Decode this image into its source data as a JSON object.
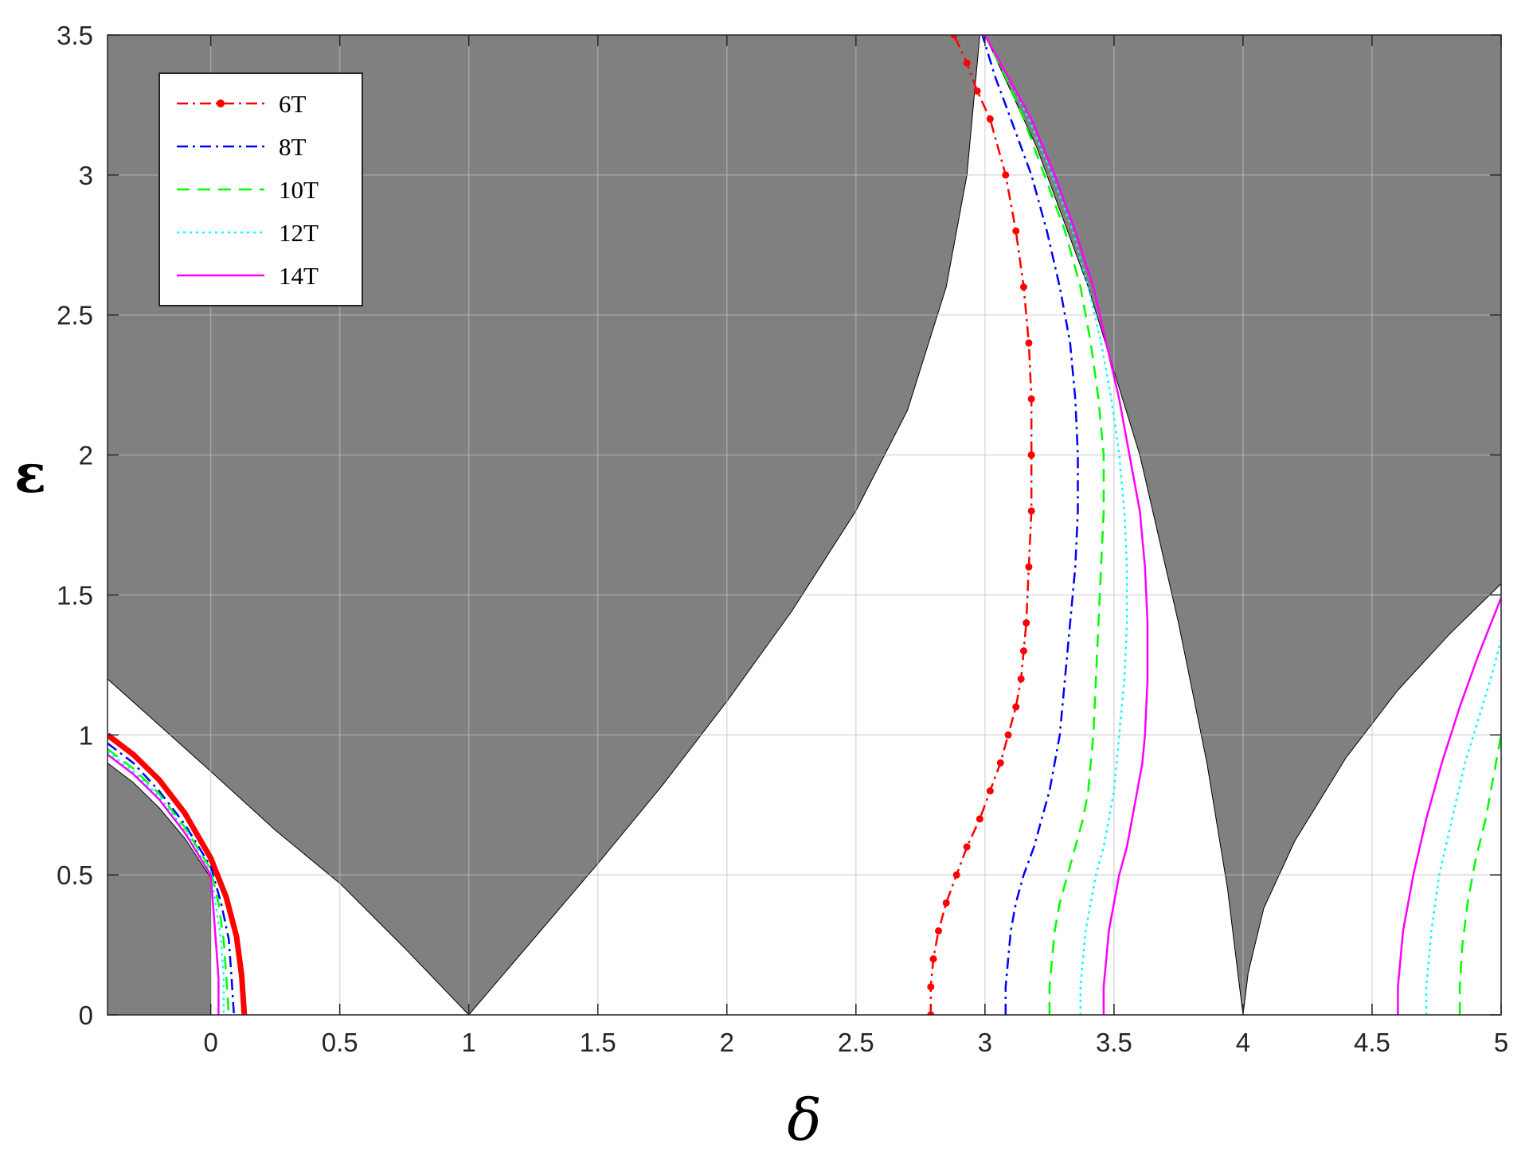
{
  "chart_data": {
    "type": "line",
    "xlabel": "δ",
    "ylabel": "ε",
    "xlim": [
      -0.4,
      5
    ],
    "ylim": [
      0,
      3.5
    ],
    "xticks": [
      "0",
      "0.5",
      "1",
      "1.5",
      "2",
      "2.5",
      "3",
      "3.5",
      "4",
      "4.5",
      "5"
    ],
    "xtick_values": [
      0,
      0.5,
      1,
      1.5,
      2,
      2.5,
      3,
      3.5,
      4,
      4.5,
      5
    ],
    "yticks": [
      "0",
      "0.5",
      "1",
      "1.5",
      "2",
      "2.5",
      "3",
      "3.5"
    ],
    "ytick_values": [
      0,
      0.5,
      1,
      1.5,
      2,
      2.5,
      3,
      3.5
    ],
    "grid": true,
    "legend_position": "top-left",
    "unstable_region_color": "#808080",
    "series": [
      {
        "name": "6T",
        "color": "#ff0000",
        "style": "dash-dot with dots",
        "branches": [
          [
            [
              -0.4,
              1.0
            ],
            [
              -0.3,
              0.93
            ],
            [
              -0.2,
              0.84
            ],
            [
              -0.1,
              0.72
            ],
            [
              0.0,
              0.56
            ],
            [
              0.06,
              0.42
            ],
            [
              0.1,
              0.28
            ],
            [
              0.12,
              0.14
            ],
            [
              0.13,
              0.0
            ]
          ],
          [
            [
              2.79,
              0.0
            ],
            [
              2.79,
              0.1
            ],
            [
              2.8,
              0.2
            ],
            [
              2.82,
              0.3
            ],
            [
              2.85,
              0.4
            ],
            [
              2.89,
              0.5
            ],
            [
              2.93,
              0.6
            ],
            [
              2.98,
              0.7
            ],
            [
              3.02,
              0.8
            ],
            [
              3.06,
              0.9
            ],
            [
              3.09,
              1.0
            ],
            [
              3.12,
              1.1
            ],
            [
              3.14,
              1.2
            ],
            [
              3.15,
              1.3
            ],
            [
              3.16,
              1.4
            ],
            [
              3.17,
              1.6
            ],
            [
              3.18,
              1.8
            ],
            [
              3.18,
              2.0
            ],
            [
              3.18,
              2.2
            ],
            [
              3.17,
              2.4
            ],
            [
              3.15,
              2.6
            ],
            [
              3.12,
              2.8
            ],
            [
              3.08,
              3.0
            ],
            [
              3.02,
              3.2
            ],
            [
              2.97,
              3.3
            ],
            [
              2.93,
              3.4
            ],
            [
              2.88,
              3.5
            ]
          ]
        ]
      },
      {
        "name": "8T",
        "color": "#0000ff",
        "style": "dash-dot",
        "branches": [
          [
            [
              -0.4,
              0.97
            ],
            [
              -0.3,
              0.9
            ],
            [
              -0.2,
              0.8
            ],
            [
              -0.1,
              0.68
            ],
            [
              0.0,
              0.53
            ],
            [
              0.04,
              0.4
            ],
            [
              0.07,
              0.27
            ],
            [
              0.08,
              0.14
            ],
            [
              0.09,
              0.0
            ]
          ],
          [
            [
              3.08,
              0.0
            ],
            [
              3.08,
              0.1
            ],
            [
              3.09,
              0.2
            ],
            [
              3.1,
              0.3
            ],
            [
              3.12,
              0.4
            ],
            [
              3.15,
              0.5
            ],
            [
              3.19,
              0.6
            ],
            [
              3.22,
              0.7
            ],
            [
              3.25,
              0.8
            ],
            [
              3.27,
              0.9
            ],
            [
              3.29,
              1.0
            ],
            [
              3.31,
              1.2
            ],
            [
              3.33,
              1.4
            ],
            [
              3.35,
              1.6
            ],
            [
              3.36,
              1.8
            ],
            [
              3.36,
              2.0
            ],
            [
              3.35,
              2.2
            ],
            [
              3.33,
              2.4
            ],
            [
              3.29,
              2.6
            ],
            [
              3.24,
              2.8
            ],
            [
              3.18,
              3.0
            ],
            [
              3.1,
              3.2
            ],
            [
              3.04,
              3.35
            ],
            [
              2.99,
              3.5
            ]
          ]
        ]
      },
      {
        "name": "10T",
        "color": "#00ff00",
        "style": "dashed",
        "branches": [
          [
            [
              -0.4,
              0.95
            ],
            [
              -0.3,
              0.88
            ],
            [
              -0.2,
              0.79
            ],
            [
              -0.1,
              0.67
            ],
            [
              0.0,
              0.52
            ],
            [
              0.03,
              0.4
            ],
            [
              0.05,
              0.27
            ],
            [
              0.06,
              0.14
            ],
            [
              0.07,
              0.0
            ]
          ],
          [
            [
              3.25,
              0.0
            ],
            [
              3.25,
              0.1
            ],
            [
              3.26,
              0.2
            ],
            [
              3.27,
              0.3
            ],
            [
              3.29,
              0.4
            ],
            [
              3.32,
              0.5
            ],
            [
              3.35,
              0.6
            ],
            [
              3.38,
              0.7
            ],
            [
              3.4,
              0.8
            ],
            [
              3.41,
              0.9
            ],
            [
              3.42,
              1.0
            ],
            [
              3.43,
              1.2
            ],
            [
              3.44,
              1.4
            ],
            [
              3.45,
              1.6
            ],
            [
              3.46,
              1.8
            ],
            [
              3.46,
              2.0
            ],
            [
              3.44,
              2.2
            ],
            [
              3.41,
              2.4
            ],
            [
              3.37,
              2.6
            ],
            [
              3.31,
              2.8
            ],
            [
              3.23,
              3.0
            ],
            [
              3.15,
              3.2
            ],
            [
              3.08,
              3.35
            ],
            [
              3.0,
              3.5
            ]
          ],
          [
            [
              4.84,
              0.0
            ],
            [
              4.84,
              0.1
            ],
            [
              4.85,
              0.25
            ],
            [
              4.87,
              0.4
            ],
            [
              4.9,
              0.55
            ],
            [
              4.94,
              0.7
            ],
            [
              4.97,
              0.85
            ],
            [
              5.0,
              1.0
            ]
          ]
        ]
      },
      {
        "name": "12T",
        "color": "#00ffff",
        "style": "dotted",
        "branches": [
          [
            [
              -0.4,
              0.94
            ],
            [
              -0.3,
              0.87
            ],
            [
              -0.2,
              0.78
            ],
            [
              -0.1,
              0.66
            ],
            [
              0.0,
              0.51
            ],
            [
              0.02,
              0.39
            ],
            [
              0.04,
              0.27
            ],
            [
              0.05,
              0.14
            ],
            [
              0.05,
              0.0
            ]
          ],
          [
            [
              3.37,
              0.0
            ],
            [
              3.37,
              0.1
            ],
            [
              3.38,
              0.2
            ],
            [
              3.39,
              0.3
            ],
            [
              3.41,
              0.4
            ],
            [
              3.43,
              0.5
            ],
            [
              3.46,
              0.6
            ],
            [
              3.48,
              0.7
            ],
            [
              3.5,
              0.8
            ],
            [
              3.51,
              0.9
            ],
            [
              3.52,
              1.0
            ],
            [
              3.54,
              1.2
            ],
            [
              3.55,
              1.4
            ],
            [
              3.55,
              1.6
            ],
            [
              3.54,
              1.8
            ],
            [
              3.52,
              2.0
            ],
            [
              3.49,
              2.2
            ],
            [
              3.45,
              2.4
            ],
            [
              3.4,
              2.6
            ],
            [
              3.34,
              2.8
            ],
            [
              3.26,
              3.0
            ],
            [
              3.17,
              3.2
            ],
            [
              3.09,
              3.35
            ],
            [
              3.0,
              3.5
            ]
          ],
          [
            [
              4.71,
              0.0
            ],
            [
              4.71,
              0.1
            ],
            [
              4.73,
              0.3
            ],
            [
              4.76,
              0.5
            ],
            [
              4.81,
              0.7
            ],
            [
              4.86,
              0.9
            ],
            [
              4.91,
              1.05
            ],
            [
              4.96,
              1.2
            ],
            [
              5.0,
              1.34
            ]
          ]
        ]
      },
      {
        "name": "14T",
        "color": "#ff00ff",
        "style": "solid",
        "branches": [
          [
            [
              -0.4,
              0.93
            ],
            [
              -0.3,
              0.86
            ],
            [
              -0.2,
              0.77
            ],
            [
              -0.1,
              0.65
            ],
            [
              0.0,
              0.5
            ],
            [
              0.01,
              0.38
            ],
            [
              0.02,
              0.26
            ],
            [
              0.03,
              0.13
            ],
            [
              0.03,
              0.0
            ]
          ],
          [
            [
              3.46,
              0.0
            ],
            [
              3.46,
              0.1
            ],
            [
              3.47,
              0.2
            ],
            [
              3.48,
              0.3
            ],
            [
              3.5,
              0.4
            ],
            [
              3.52,
              0.5
            ],
            [
              3.55,
              0.6
            ],
            [
              3.57,
              0.7
            ],
            [
              3.59,
              0.8
            ],
            [
              3.61,
              0.9
            ],
            [
              3.62,
              1.0
            ],
            [
              3.63,
              1.2
            ],
            [
              3.63,
              1.4
            ],
            [
              3.62,
              1.6
            ],
            [
              3.6,
              1.8
            ],
            [
              3.56,
              2.0
            ],
            [
              3.52,
              2.2
            ],
            [
              3.47,
              2.4
            ],
            [
              3.42,
              2.6
            ],
            [
              3.35,
              2.8
            ],
            [
              3.27,
              3.0
            ],
            [
              3.18,
              3.2
            ],
            [
              3.09,
              3.35
            ],
            [
              3.0,
              3.5
            ]
          ],
          [
            [
              4.6,
              0.0
            ],
            [
              4.6,
              0.1
            ],
            [
              4.62,
              0.3
            ],
            [
              4.66,
              0.5
            ],
            [
              4.71,
              0.7
            ],
            [
              4.77,
              0.9
            ],
            [
              4.84,
              1.1
            ],
            [
              4.91,
              1.28
            ],
            [
              4.97,
              1.42
            ],
            [
              5.0,
              1.49
            ]
          ]
        ]
      }
    ],
    "unstable_regions": [
      [
        [
          -0.4,
          0.0
        ],
        [
          -0.4,
          0.9
        ],
        [
          -0.3,
          0.83
        ],
        [
          -0.2,
          0.74
        ],
        [
          -0.1,
          0.63
        ],
        [
          -0.05,
          0.56
        ],
        [
          0.0,
          0.49
        ],
        [
          0.0,
          0.0
        ]
      ],
      [
        [
          -0.4,
          1.2
        ],
        [
          0.0,
          0.87
        ],
        [
          0.25,
          0.66
        ],
        [
          0.5,
          0.47
        ],
        [
          0.75,
          0.24
        ],
        [
          1.0,
          0.0
        ],
        [
          1.25,
          0.27
        ],
        [
          1.5,
          0.54
        ],
        [
          1.75,
          0.82
        ],
        [
          2.0,
          1.12
        ],
        [
          2.25,
          1.44
        ],
        [
          2.5,
          1.8
        ],
        [
          2.7,
          2.16
        ],
        [
          2.85,
          2.6
        ],
        [
          2.93,
          3.0
        ],
        [
          2.98,
          3.5
        ],
        [
          -0.4,
          3.5
        ]
      ],
      [
        [
          3.0,
          3.5
        ],
        [
          3.05,
          3.4
        ],
        [
          3.2,
          3.1
        ],
        [
          3.4,
          2.6
        ],
        [
          3.6,
          2.0
        ],
        [
          3.75,
          1.4
        ],
        [
          3.86,
          0.9
        ],
        [
          3.94,
          0.45
        ],
        [
          3.98,
          0.15
        ],
        [
          4.0,
          0.0
        ],
        [
          4.02,
          0.15
        ],
        [
          4.08,
          0.38
        ],
        [
          4.2,
          0.62
        ],
        [
          4.4,
          0.92
        ],
        [
          4.6,
          1.16
        ],
        [
          4.8,
          1.36
        ],
        [
          5.0,
          1.54
        ],
        [
          5.0,
          3.5
        ]
      ]
    ]
  }
}
